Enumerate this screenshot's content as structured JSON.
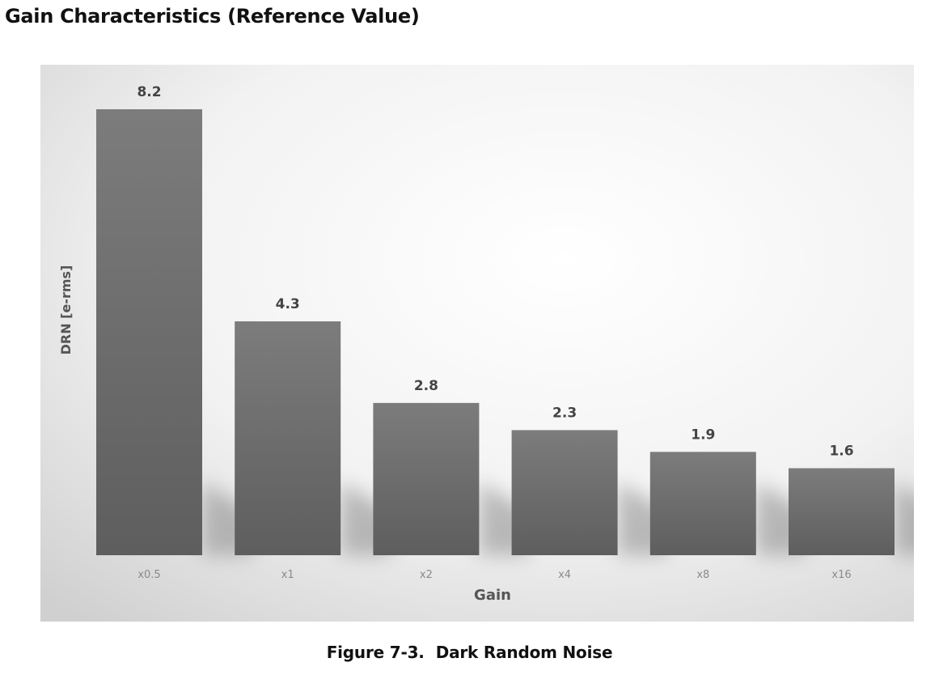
{
  "page": {
    "heading": "Gain Characteristics (Reference Value)"
  },
  "figure": {
    "number": "Figure 7-3.",
    "title": "Dark Random Noise"
  },
  "chart_data": {
    "type": "bar",
    "categories": [
      "x0.5",
      "x1",
      "x2",
      "x4",
      "x8",
      "x16"
    ],
    "values": [
      8.2,
      4.3,
      2.8,
      2.3,
      1.9,
      1.6
    ],
    "data_labels": [
      "8.2",
      "4.3",
      "2.8",
      "2.3",
      "1.9",
      "1.6"
    ],
    "xlabel": "Gain",
    "ylabel": "DRN [e-rms]",
    "ylim": [
      0,
      8.2
    ],
    "grid": false,
    "legend": "none",
    "colors": {
      "bar_top": "#7b7b7b",
      "bar_bottom": "#5c5c5c",
      "background_light": "#fdfdfd",
      "background_dark": "#d2d2d2",
      "label_text": "#444444",
      "tick_text": "#8a8a8a"
    }
  }
}
